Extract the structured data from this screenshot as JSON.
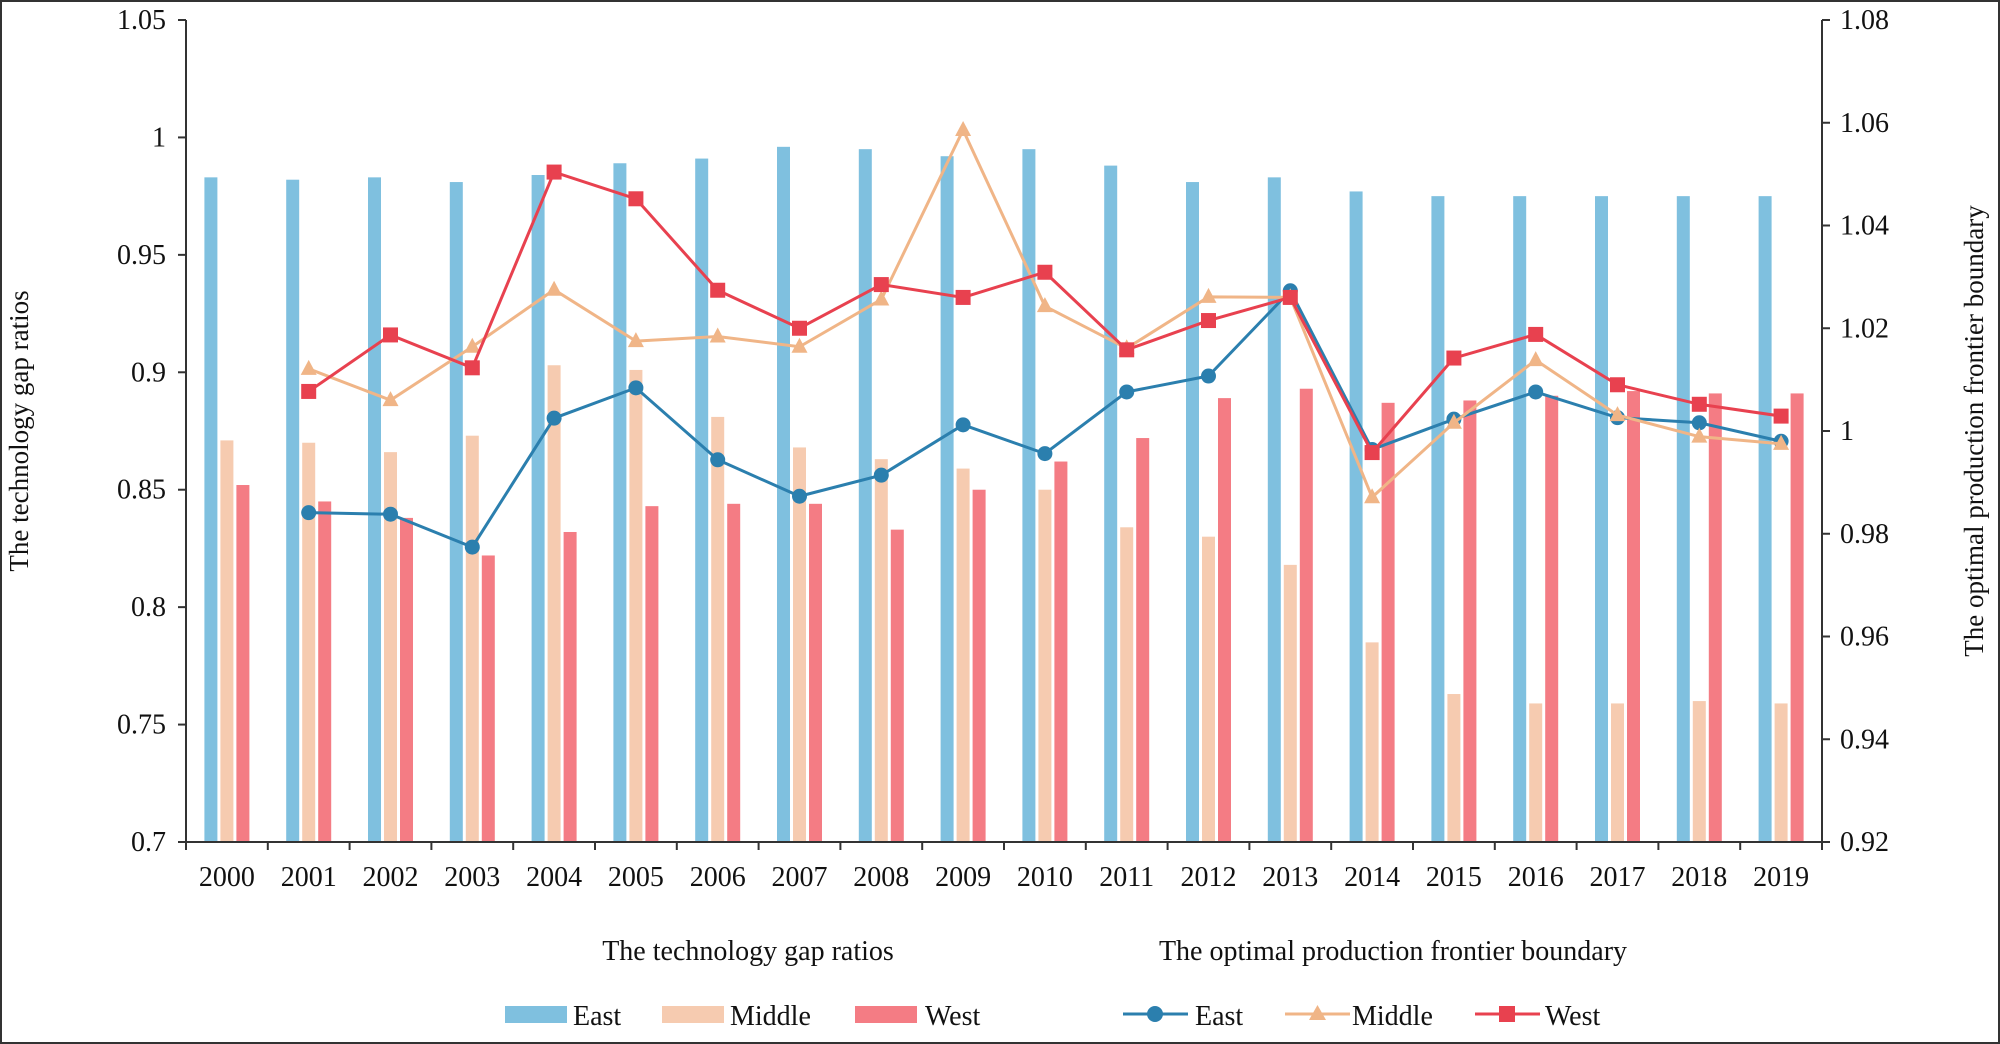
{
  "chart_data": {
    "type": "bar+line",
    "categories": [
      "2000",
      "2001",
      "2002",
      "2003",
      "2004",
      "2005",
      "2006",
      "2007",
      "2008",
      "2009",
      "2010",
      "2011",
      "2012",
      "2013",
      "2014",
      "2015",
      "2016",
      "2017",
      "2018",
      "2019"
    ],
    "left_axis": {
      "label": "The technology gap ratios",
      "ylim": [
        0.7,
        1.05
      ],
      "ticks": [
        "0.7",
        "0.75",
        "0.8",
        "0.85",
        "0.9",
        "0.95",
        "1",
        "1.05"
      ]
    },
    "right_axis": {
      "label": "The optimal production frontier boundary",
      "ylim": [
        0.92,
        1.08
      ],
      "ticks": [
        "0.92",
        "0.94",
        "0.96",
        "0.98",
        "1",
        "1.02",
        "1.04",
        "1.06",
        "1.08"
      ]
    },
    "bar_series": [
      {
        "name": "East",
        "color": "#7fc0df",
        "values": [
          0.983,
          0.982,
          0.983,
          0.981,
          0.984,
          0.989,
          0.991,
          0.996,
          0.995,
          0.992,
          0.995,
          0.988,
          0.981,
          0.983,
          0.977,
          0.975,
          0.975,
          0.975,
          0.975,
          0.975
        ]
      },
      {
        "name": "Middle",
        "color": "#f6cbb0",
        "values": [
          0.871,
          0.87,
          0.866,
          0.873,
          0.903,
          0.901,
          0.881,
          0.868,
          0.863,
          0.859,
          0.85,
          0.834,
          0.83,
          0.818,
          0.785,
          0.763,
          0.759,
          0.759,
          0.76,
          0.759
        ]
      },
      {
        "name": "West",
        "color": "#f47c84",
        "values": [
          0.852,
          0.845,
          0.838,
          0.822,
          0.832,
          0.843,
          0.844,
          0.844,
          0.833,
          0.85,
          0.862,
          0.872,
          0.889,
          0.893,
          0.887,
          0.888,
          0.89,
          0.892,
          0.891,
          0.891
        ]
      }
    ],
    "line_series": [
      {
        "name": "East",
        "color": "#2b7fae",
        "marker": "circle",
        "values": [
          null,
          0.9841,
          0.9838,
          0.9774,
          1.0025,
          1.0084,
          0.9944,
          0.9873,
          0.9914,
          1.0012,
          0.9956,
          1.0076,
          1.0107,
          1.0273,
          0.9964,
          1.0023,
          1.0076,
          1.0026,
          1.0016,
          0.998
        ]
      },
      {
        "name": "Middle",
        "color": "#f0b587",
        "marker": "triangle",
        "values": [
          null,
          1.0121,
          1.006,
          1.0164,
          1.0275,
          1.0175,
          1.0184,
          1.0164,
          1.0256,
          1.0586,
          1.0243,
          1.0161,
          1.0261,
          1.026,
          0.9871,
          1.0016,
          1.0138,
          1.0031,
          0.9989,
          0.9975
        ]
      },
      {
        "name": "West",
        "color": "#e8414f",
        "marker": "square",
        "values": [
          null,
          1.0077,
          1.0187,
          1.0123,
          1.0504,
          1.0452,
          1.0274,
          1.02,
          1.0285,
          1.026,
          1.0309,
          1.0158,
          1.0215,
          1.026,
          0.9958,
          1.0142,
          1.0188,
          1.009,
          1.0052,
          1.0029
        ]
      }
    ],
    "legend": {
      "bar_group_title": "The technology gap ratios",
      "line_group_title": "The optimal production frontier boundary",
      "position": "bottom"
    },
    "grid": false
  }
}
